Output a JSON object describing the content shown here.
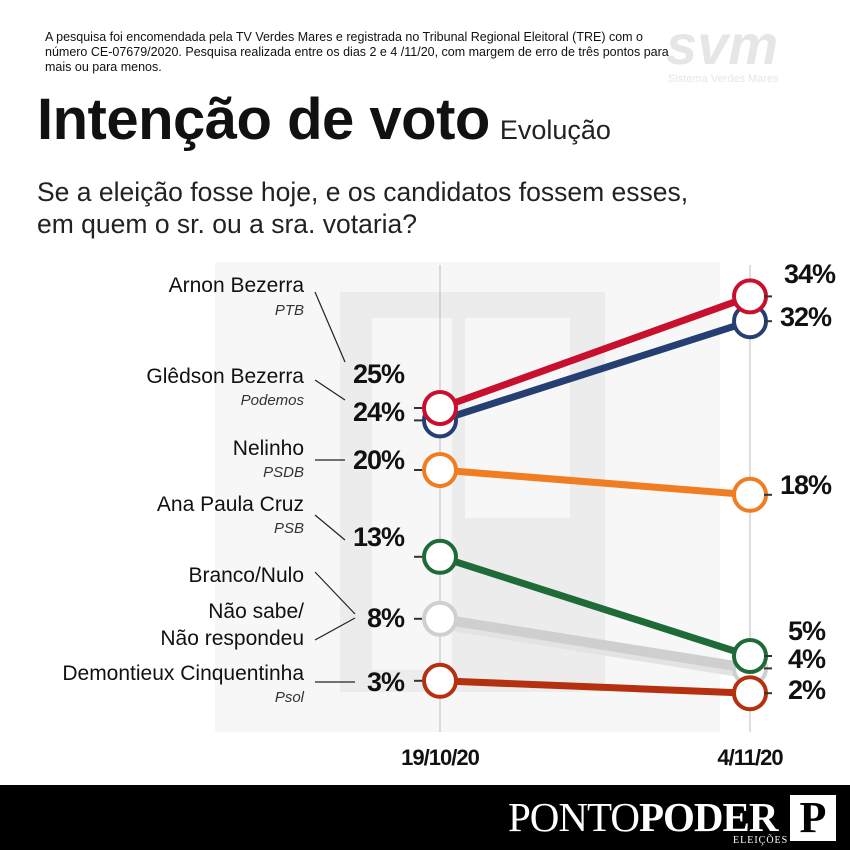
{
  "note": "A pesquisa foi encomendada pela TV Verdes Mares e registrada no Tribunal Regional Eleitoral (TRE) com o número CE-07679/2020. Pesquisa realizada entre os dias 2 e 4 /11/20, com margem de erro de três pontos para mais ou para menos.",
  "logo": {
    "text": "svm",
    "caption": "Sistema Verdes Mares"
  },
  "title": "Intenção de voto",
  "subtitle": "Evolução",
  "question": "Se a eleição fosse hoje, e os candidatos fossem esses, em quem o sr. ou a sra. votaria?",
  "footer": {
    "brand_light": "PONTO",
    "brand_bold": "PODER",
    "brand_sub": "ELEIÇÕES",
    "brand_mark": "P"
  },
  "chart_data": {
    "type": "line",
    "x": [
      "19/10/20",
      "4/11/20"
    ],
    "ylabel": "",
    "ylim": [
      0,
      36
    ],
    "series": [
      {
        "name": "Arnon Bezerra",
        "party": "PTB",
        "color": "#c8102e",
        "values": [
          25,
          34
        ],
        "labels": [
          "25%",
          "34%"
        ]
      },
      {
        "name": "Glêdson Bezerra",
        "party": "Podemos",
        "color": "#263f73",
        "values": [
          24,
          32
        ],
        "labels": [
          "24%",
          "32%"
        ]
      },
      {
        "name": "Nelinho",
        "party": "PSDB",
        "color": "#f07d22",
        "values": [
          20,
          18
        ],
        "labels": [
          "20%",
          "18%"
        ]
      },
      {
        "name": "Ana Paula Cruz",
        "party": "PSB",
        "color": "#1e6b37",
        "values": [
          13,
          5
        ],
        "labels": [
          "13%",
          "5%"
        ]
      },
      {
        "name": "Branco/Nulo",
        "party": "",
        "color": "#cfcfcf",
        "values": [
          8,
          4
        ],
        "labels": [
          "8%",
          "4%"
        ]
      },
      {
        "name": "Não sabe/ Não respondeu",
        "party": "",
        "color": "#e3e3e3",
        "values": [
          8,
          4
        ],
        "labels": [
          "",
          ""
        ]
      },
      {
        "name": "Demontieux Cinquentinha",
        "party": "Psol",
        "color": "#b5300f",
        "values": [
          3,
          2
        ],
        "labels": [
          "3%",
          "2%"
        ]
      }
    ]
  }
}
